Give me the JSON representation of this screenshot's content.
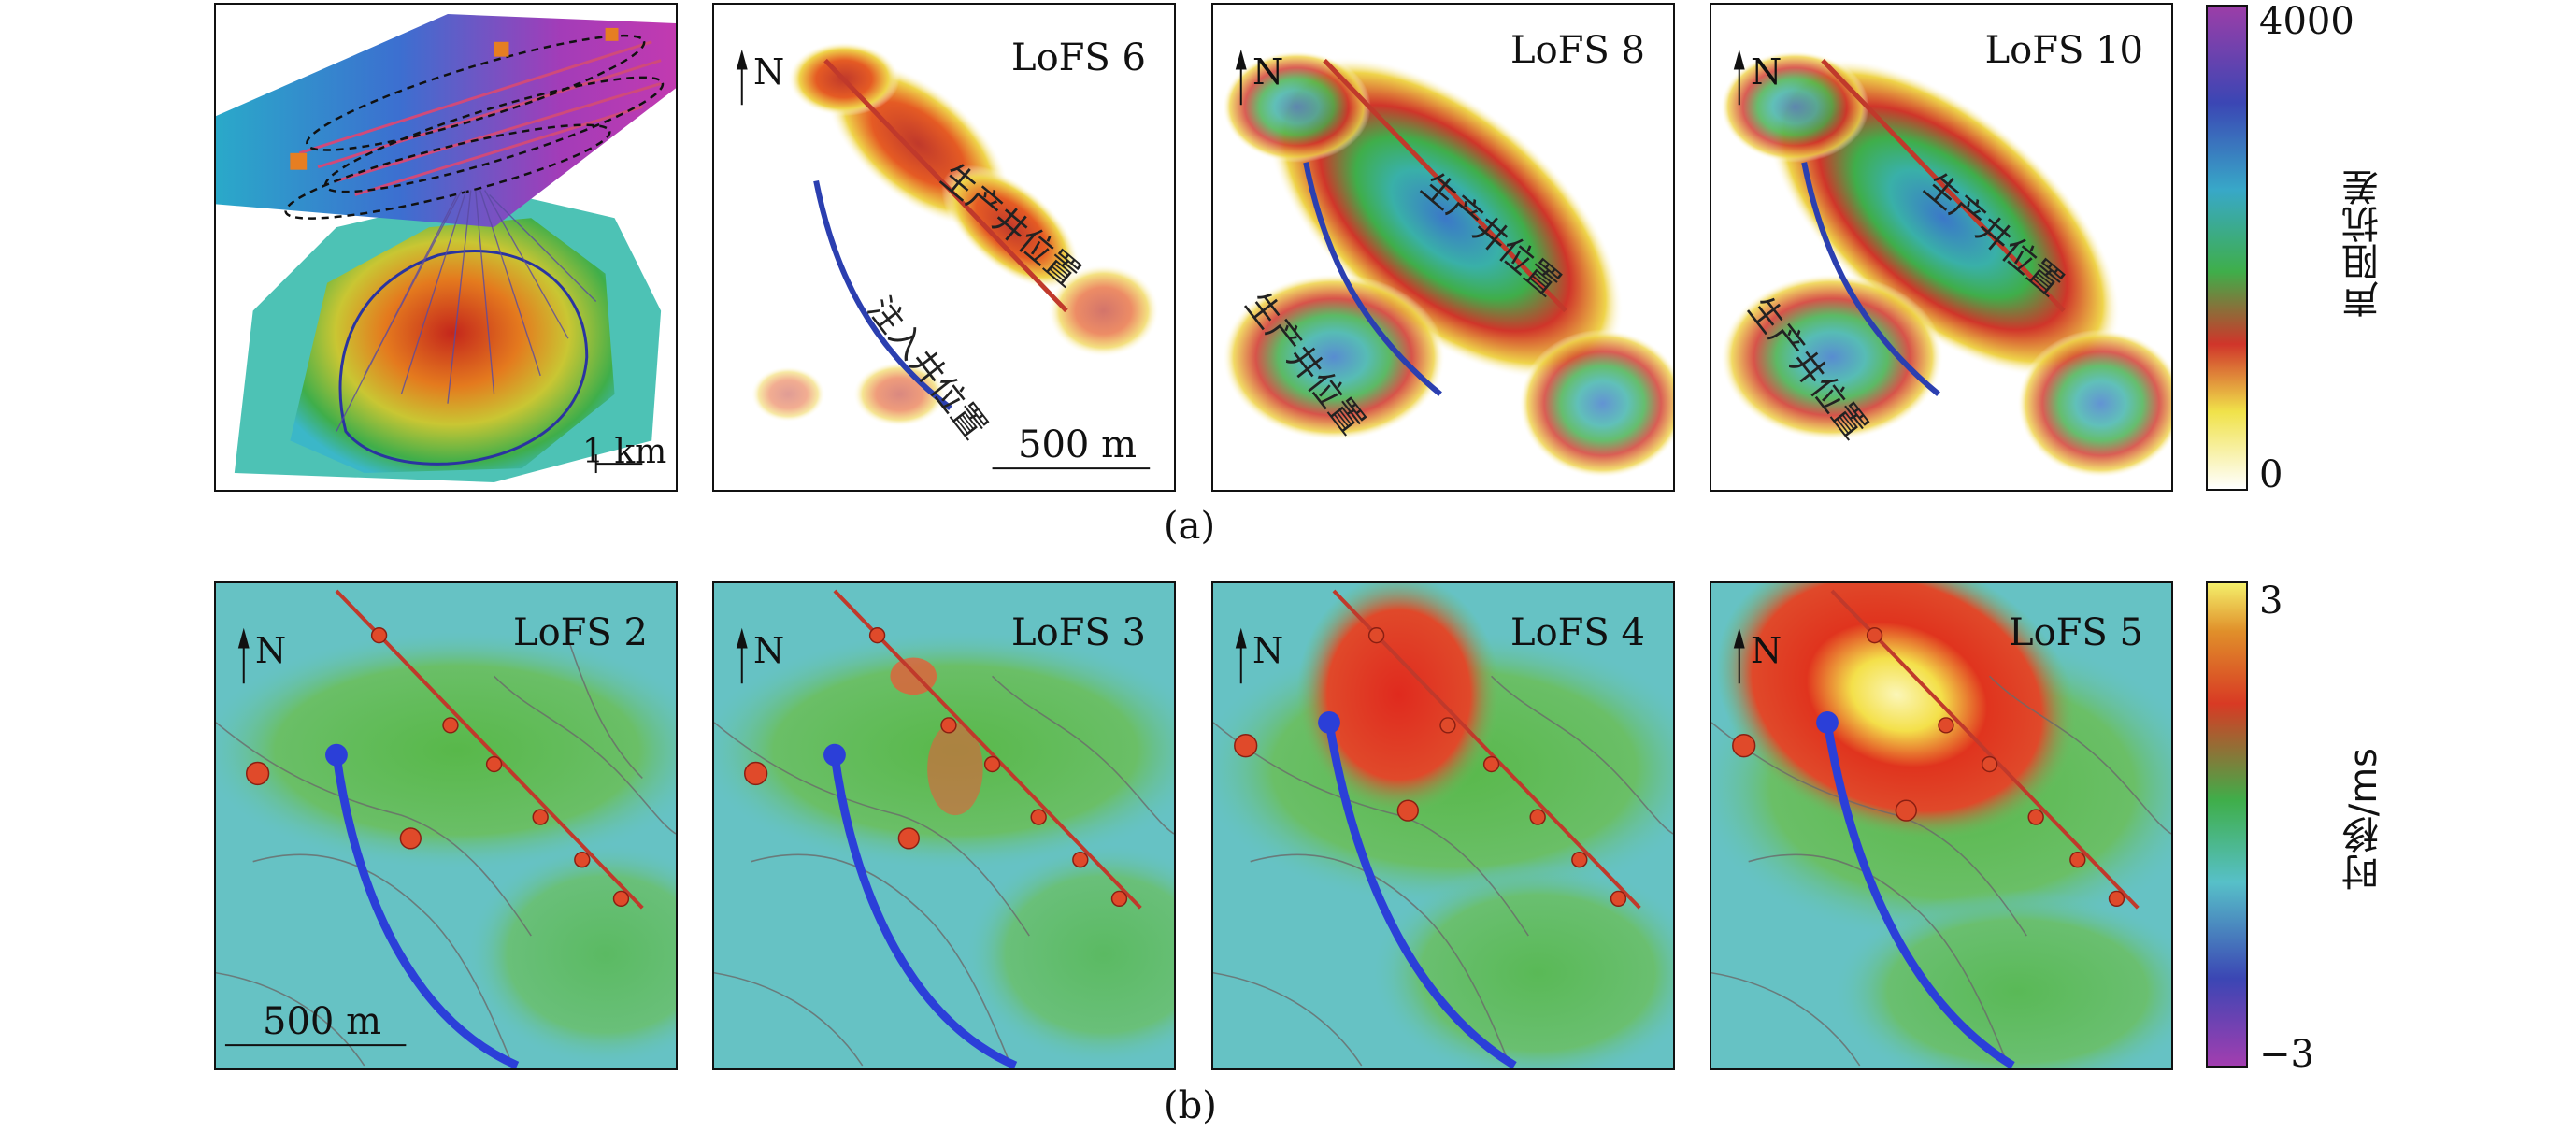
{
  "row_a": {
    "caption": "(a)",
    "perspective_scale": "1 km",
    "panels": [
      {
        "label": "LoFS 6",
        "north": "N",
        "scale": "500 m",
        "annotations": [
          "生产井位置",
          "注入井位置"
        ]
      },
      {
        "label": "LoFS 8",
        "north": "N",
        "annotations": [
          "生产井位置",
          "生产井位置"
        ]
      },
      {
        "label": "LoFS 10",
        "north": "N",
        "annotations": [
          "生产井位置",
          "生产井位置"
        ]
      }
    ],
    "colorbar": {
      "title": "声阻抗差",
      "max": "4000",
      "min": "0"
    }
  },
  "row_b": {
    "caption": "(b)",
    "panels": [
      {
        "label": "LoFS 2",
        "north": "N",
        "scale": "500 m"
      },
      {
        "label": "LoFS 3",
        "north": "N"
      },
      {
        "label": "LoFS 4",
        "north": "N"
      },
      {
        "label": "LoFS 5",
        "north": "N"
      }
    ],
    "colorbar": {
      "title": "时移/ms",
      "max": "3",
      "min": "−3"
    }
  },
  "colors": {
    "production_well": "#c0392b",
    "injection_well": "#2b3fb0",
    "seismic_base": "#5cbdc4",
    "anomaly": "#e23a24"
  }
}
